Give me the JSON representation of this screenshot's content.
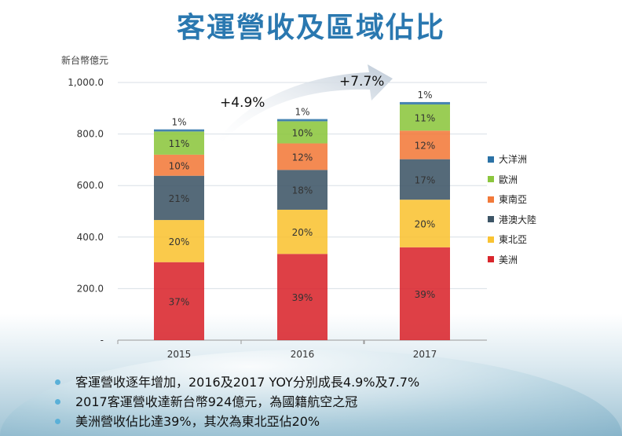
{
  "title": "客運營收及區域佔比",
  "unit_label": "新台幣億元",
  "chart_data": {
    "type": "bar",
    "stacked": true,
    "categories": [
      "2015",
      "2016",
      "2017"
    ],
    "totals": [
      818,
      858,
      924
    ],
    "ylim": [
      0,
      1000
    ],
    "yticks": [
      {
        "v": 0,
        "label": "-"
      },
      {
        "v": 200,
        "label": "200.0"
      },
      {
        "v": 400,
        "label": "400.0"
      },
      {
        "v": 600,
        "label": "600.0"
      },
      {
        "v": 800,
        "label": "800.0"
      },
      {
        "v": 1000,
        "label": "1,000.0"
      }
    ],
    "grid": true,
    "legend_position": "right",
    "series": [
      {
        "name": "美洲",
        "color": "#d9262c",
        "shares": [
          37,
          39,
          39
        ]
      },
      {
        "name": "東北亞",
        "color": "#f9c332",
        "shares": [
          20,
          20,
          20
        ]
      },
      {
        "name": "港澳大陸",
        "color": "#3d5566",
        "shares": [
          21,
          18,
          17
        ]
      },
      {
        "name": "東南亞",
        "color": "#f27a3a",
        "shares": [
          10,
          12,
          12
        ]
      },
      {
        "name": "歐洲",
        "color": "#8cc63e",
        "shares": [
          11,
          10,
          11
        ]
      },
      {
        "name": "大洋洲",
        "color": "#2b72a6",
        "shares": [
          1,
          1,
          1
        ]
      }
    ],
    "legend_order": [
      "大洋洲",
      "歐洲",
      "東南亞",
      "港澳大陸",
      "東北亞",
      "美洲"
    ],
    "annotations": [
      "+4.9%",
      "+7.7%"
    ]
  },
  "bullets": [
    "客運營收逐年增加，2016及2017 YOY分別成長4.9%及7.7%",
    "2017客運營收達新台幣924億元，為國籍航空之冠",
    "美洲營收佔比達39%，其次為東北亞佔20%"
  ]
}
